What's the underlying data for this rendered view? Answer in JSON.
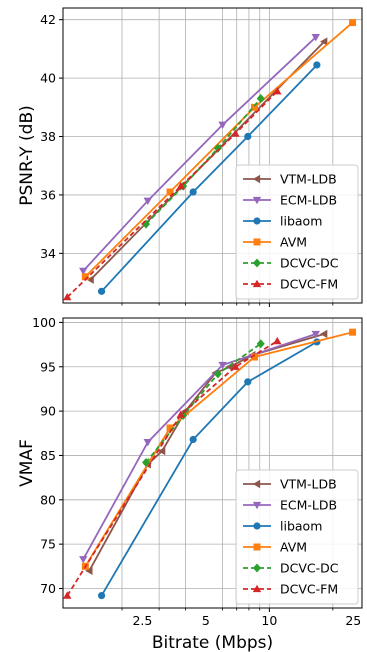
{
  "chart_data": [
    {
      "type": "line",
      "title": "",
      "xlabel": "",
      "ylabel": "PSNR-Y (dB)",
      "xscale": "log",
      "xlim": [
        1.05,
        27.5
      ],
      "ylim": [
        32.3,
        42.4
      ],
      "xticks": [],
      "yticks": [
        34,
        36,
        38,
        40,
        42
      ],
      "grid": true,
      "legend_position": "lower-right",
      "series": [
        {
          "name": "VTM-LDB",
          "color": "#8c564b",
          "marker": "tri-left",
          "dash": false,
          "x": [
            1.42,
            18.2
          ],
          "y": [
            33.1,
            41.25
          ]
        },
        {
          "name": "ECM-LDB",
          "color": "#9467bd",
          "marker": "tri-down",
          "dash": false,
          "x": [
            1.31,
            2.65,
            6.0,
            16.6
          ],
          "y": [
            33.4,
            35.8,
            38.4,
            41.4
          ]
        },
        {
          "name": "libaom",
          "color": "#1f77b4",
          "marker": "circle",
          "dash": false,
          "x": [
            1.6,
            4.35,
            7.9,
            16.8
          ],
          "y": [
            32.7,
            36.1,
            38.0,
            40.45
          ]
        },
        {
          "name": "AVM",
          "color": "#ff7f0e",
          "marker": "square",
          "dash": false,
          "x": [
            1.34,
            3.38,
            8.5,
            24.8
          ],
          "y": [
            33.2,
            36.1,
            39.0,
            41.9
          ]
        },
        {
          "name": "DCVC-DC",
          "color": "#2ca02c",
          "marker": "diamond",
          "dash": true,
          "x": [
            2.6,
            3.9,
            5.7,
            9.1
          ],
          "y": [
            35.0,
            36.3,
            37.6,
            39.3
          ]
        },
        {
          "name": "DCVC-FM",
          "color": "#d62728",
          "marker": "tri-up",
          "dash": true,
          "x": [
            1.1,
            3.8,
            6.9,
            10.9
          ],
          "y": [
            32.5,
            36.3,
            38.1,
            39.55
          ]
        }
      ]
    },
    {
      "type": "line",
      "title": "",
      "xlabel": "Bitrate (Mbps)",
      "ylabel": "VMAF",
      "xscale": "log",
      "xlim": [
        1.05,
        27.5
      ],
      "ylim": [
        67.8,
        100.5
      ],
      "xticks": [
        "2.5",
        "5",
        "10",
        "25"
      ],
      "xtick_values": [
        2.5,
        5,
        10,
        25
      ],
      "yticks": [
        70,
        75,
        80,
        85,
        90,
        95,
        100
      ],
      "grid": true,
      "legend_position": "lower-right",
      "series": [
        {
          "name": "VTM-LDB",
          "color": "#8c564b",
          "marker": "tri-left",
          "dash": false,
          "x": [
            1.4,
            2.65,
            3.1,
            4.0,
            5.55,
            6.5,
            8.3,
            18.2
          ],
          "y": [
            72.0,
            84.0,
            85.5,
            90.0,
            94.3,
            95.0,
            96.3,
            98.7
          ]
        },
        {
          "name": "ECM-LDB",
          "color": "#9467bd",
          "marker": "tri-down",
          "dash": false,
          "x": [
            1.31,
            2.65,
            6.0,
            16.6
          ],
          "y": [
            73.3,
            86.5,
            95.2,
            98.7
          ]
        },
        {
          "name": "libaom",
          "color": "#1f77b4",
          "marker": "circle",
          "dash": false,
          "x": [
            1.6,
            4.35,
            7.9,
            16.8
          ],
          "y": [
            69.2,
            86.8,
            93.3,
            97.8
          ]
        },
        {
          "name": "AVM",
          "color": "#ff7f0e",
          "marker": "square",
          "dash": false,
          "x": [
            1.34,
            3.38,
            8.5,
            24.8
          ],
          "y": [
            72.5,
            88.1,
            96.1,
            98.9
          ]
        },
        {
          "name": "DCVC-DC",
          "color": "#2ca02c",
          "marker": "diamond",
          "dash": true,
          "x": [
            2.6,
            3.9,
            5.7,
            9.1
          ],
          "y": [
            84.2,
            89.5,
            94.2,
            97.6
          ]
        },
        {
          "name": "DCVC-FM",
          "color": "#d62728",
          "marker": "tri-up",
          "dash": true,
          "x": [
            1.1,
            3.8,
            6.9,
            10.9
          ],
          "y": [
            69.2,
            89.6,
            95.0,
            97.9
          ]
        }
      ]
    }
  ]
}
